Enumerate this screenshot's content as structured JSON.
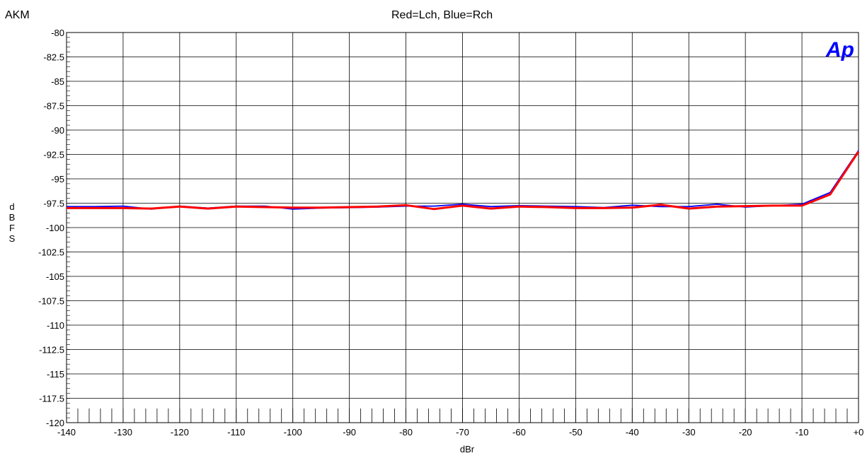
{
  "header": {
    "left_text": "AKM",
    "title": "Red=Lch, Blue=Rch"
  },
  "logo": {
    "text": "Ap",
    "color": "#0000ff"
  },
  "chart_data": {
    "type": "line",
    "title": "Red=Lch, Blue=Rch",
    "xlabel": "dBr",
    "ylabel": "dBFS",
    "xlim": [
      -140,
      0
    ],
    "ylim": [
      -120,
      -80
    ],
    "grid": true,
    "x_ticks": [
      -140,
      -130,
      -120,
      -110,
      -100,
      -90,
      -80,
      -70,
      -60,
      -50,
      -40,
      -30,
      -20,
      -10,
      0
    ],
    "x_tick_labels": [
      "-140",
      "-130",
      "-120",
      "-110",
      "-100",
      "-90",
      "-80",
      "-70",
      "-60",
      "-50",
      "-40",
      "-30",
      "-20",
      "-10",
      "+0"
    ],
    "y_ticks": [
      -80,
      -82.5,
      -85,
      -87.5,
      -90,
      -92.5,
      -95,
      -97.5,
      -100,
      -102.5,
      -105,
      -107.5,
      -110,
      -112.5,
      -115,
      -117.5,
      -120
    ],
    "y_tick_labels": [
      "-80",
      "-82.5",
      "-85",
      "-87.5",
      "-90",
      "-92.5",
      "-95",
      "-97.5",
      "-100",
      "-102.5",
      "-105",
      "-107.5",
      "-110",
      "-112.5",
      "-115",
      "-117.5",
      "-120"
    ],
    "x": [
      -140,
      -135,
      -130,
      -125,
      -120,
      -115,
      -110,
      -105,
      -100,
      -95,
      -90,
      -85,
      -80,
      -75,
      -70,
      -65,
      -60,
      -55,
      -50,
      -45,
      -40,
      -35,
      -30,
      -25,
      -20,
      -15,
      -10,
      -5,
      0
    ],
    "series": [
      {
        "name": "Lch",
        "color": "#ff0000",
        "values": [
          -98.0,
          -98.0,
          -98.0,
          -98.05,
          -97.85,
          -98.05,
          -97.85,
          -97.9,
          -97.95,
          -97.95,
          -97.9,
          -97.85,
          -97.7,
          -98.1,
          -97.75,
          -98.05,
          -97.85,
          -97.9,
          -98.0,
          -98.0,
          -97.95,
          -97.65,
          -98.05,
          -97.85,
          -97.8,
          -97.75,
          -97.75,
          -96.6,
          -92.2
        ]
      },
      {
        "name": "Rch",
        "color": "#0000ff",
        "values": [
          -97.85,
          -97.85,
          -97.8,
          -98.1,
          -97.8,
          -98.0,
          -97.8,
          -97.8,
          -98.1,
          -98.0,
          -97.95,
          -97.9,
          -97.8,
          -97.8,
          -97.6,
          -97.85,
          -97.75,
          -97.8,
          -97.85,
          -97.95,
          -97.7,
          -97.85,
          -97.85,
          -97.6,
          -97.9,
          -97.75,
          -97.6,
          -96.4,
          -92.1
        ]
      }
    ]
  }
}
